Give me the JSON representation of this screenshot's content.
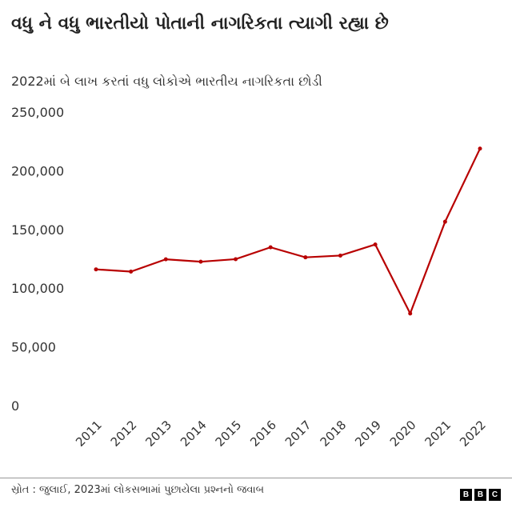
{
  "title": "વધુ ને વધુ ભારતીયો પોતાની નાગરિકતા ત્યાગી રહ્યા છે",
  "subtitle": "2022માં બે લાખ કરતાં વધુ લોકોએ ભારતીય નાગરિકતા છોડી",
  "source": "સ્રોત : જુલાઈ, 2023માં લોકસભામાં પુછાયેલા પ્રશ્નનો જવાબ",
  "logo": [
    "B",
    "B",
    "C"
  ],
  "chart_data": {
    "type": "line",
    "x": [
      "2011",
      "2012",
      "2013",
      "2014",
      "2015",
      "2016",
      "2017",
      "2018",
      "2019",
      "2020",
      "2021",
      "2022"
    ],
    "values": [
      122819,
      120923,
      131405,
      129328,
      131489,
      141603,
      133049,
      134561,
      144017,
      85256,
      163370,
      225620
    ],
    "yticks": [
      "0",
      "50,000",
      "100,000",
      "150,000",
      "200,000",
      "250,000"
    ],
    "ylim": [
      0,
      250000
    ],
    "grid": false,
    "line_color": "#b80000"
  }
}
